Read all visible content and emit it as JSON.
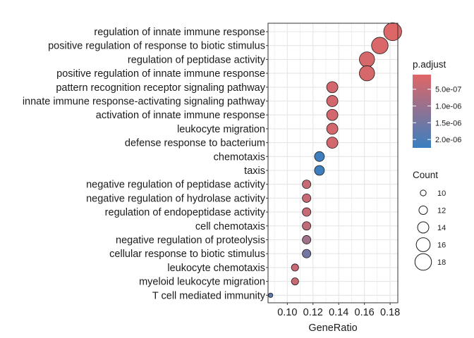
{
  "chart_data": {
    "type": "scatter",
    "xlabel": "GeneRatio",
    "ylabel": "",
    "xlim": [
      0.085,
      0.186
    ],
    "x_ticks": [
      "0.10",
      "0.12",
      "0.14",
      "0.16",
      "0.18"
    ],
    "x_tick_values": [
      0.1,
      0.12,
      0.14,
      0.16,
      0.18
    ],
    "grid": true,
    "color_scale": {
      "title": "p.adjust",
      "low_color": "#e06666",
      "high_color": "#3a7fc1",
      "domain": [
        6.5e-08,
        2.25e-06
      ],
      "labels": [
        "5.0e-07",
        "1.0e-06",
        "1.5e-06",
        "2.0e-06"
      ],
      "values": [
        5e-07,
        1e-06,
        1.5e-06,
        2e-06
      ]
    },
    "size_scale": {
      "title": "Count",
      "labels": [
        "10",
        "12",
        "14",
        "16",
        "18"
      ],
      "values": [
        10,
        12,
        14,
        16,
        18
      ]
    },
    "points": [
      {
        "term": "regulation of innate immune response",
        "x": 0.182,
        "count": 19,
        "p_adjust": 1e-07
      },
      {
        "term": "positive regulation of response to biotic stimulus",
        "x": 0.172,
        "count": 18,
        "p_adjust": 1.5e-07
      },
      {
        "term": "regulation of peptidase activity",
        "x": 0.162,
        "count": 17,
        "p_adjust": 2e-07
      },
      {
        "term": "positive regulation of innate immune response",
        "x": 0.162,
        "count": 17,
        "p_adjust": 2e-07
      },
      {
        "term": "pattern recognition receptor signaling pathway",
        "x": 0.135,
        "count": 14,
        "p_adjust": 2.5e-07
      },
      {
        "term": "innate immune response-activating signaling pathway",
        "x": 0.135,
        "count": 14,
        "p_adjust": 2.5e-07
      },
      {
        "term": "activation of innate immune response",
        "x": 0.135,
        "count": 14,
        "p_adjust": 2.5e-07
      },
      {
        "term": "leukocyte migration",
        "x": 0.135,
        "count": 14,
        "p_adjust": 2.5e-07
      },
      {
        "term": "defense response to bacterium",
        "x": 0.135,
        "count": 14,
        "p_adjust": 2.5e-07
      },
      {
        "term": "chemotaxis",
        "x": 0.125,
        "count": 13,
        "p_adjust": 2.2e-06
      },
      {
        "term": "taxis",
        "x": 0.125,
        "count": 13,
        "p_adjust": 2.2e-06
      },
      {
        "term": "negative regulation of peptidase activity",
        "x": 0.115,
        "count": 12,
        "p_adjust": 4e-07
      },
      {
        "term": "negative regulation of hydrolase activity",
        "x": 0.115,
        "count": 12,
        "p_adjust": 4e-07
      },
      {
        "term": "regulation of endopeptidase activity",
        "x": 0.115,
        "count": 12,
        "p_adjust": 4e-07
      },
      {
        "term": "cell chemotaxis",
        "x": 0.115,
        "count": 12,
        "p_adjust": 5e-07
      },
      {
        "term": "negative regulation of proteolysis",
        "x": 0.115,
        "count": 12,
        "p_adjust": 9e-07
      },
      {
        "term": "cellular response to biotic stimulus",
        "x": 0.115,
        "count": 12,
        "p_adjust": 1.5e-06
      },
      {
        "term": "leukocyte chemotaxis",
        "x": 0.106,
        "count": 11,
        "p_adjust": 4e-07
      },
      {
        "term": "myeloid leukocyte migration",
        "x": 0.106,
        "count": 11,
        "p_adjust": 4e-07
      },
      {
        "term": "T cell mediated immunity",
        "x": 0.087,
        "count": 9,
        "p_adjust": 1.8e-06
      }
    ]
  }
}
